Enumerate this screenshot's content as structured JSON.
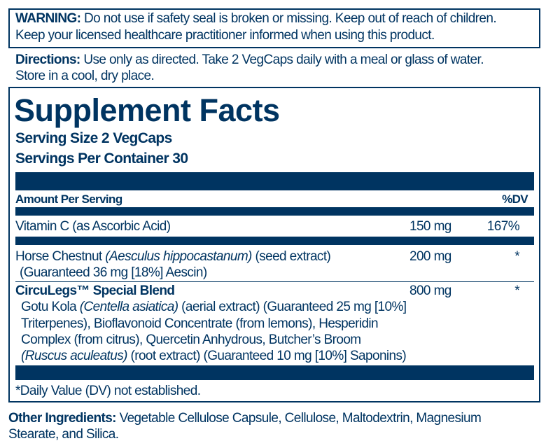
{
  "warning": {
    "label": "WARNING:",
    "line1": " Do not use if safety seal is broken or missing. Keep out of reach of children.",
    "line2": "Keep your licensed healthcare practitioner informed when using this product."
  },
  "directions": {
    "label": "Directions:",
    "line1": " Use only as directed. Take 2 VegCaps daily with a meal or glass of water.",
    "line2": "Store in a cool, dry place."
  },
  "facts": {
    "title": "Supplement Facts",
    "serving_size": "Serving Size 2 VegCaps",
    "servings_per_container": "Servings Per Container 30",
    "amount_header": "Amount Per Serving",
    "dv_header": "%DV",
    "rows": [
      {
        "name": "Vitamin C (as Ascorbic Acid)",
        "amount": "150 mg",
        "dv": "167%"
      },
      {
        "name": "Horse Chestnut ",
        "latin": "(Aesculus hippocastanum)",
        "rest": " (seed extract)",
        "line2": "(Guaranteed 36 mg [18%] Aescin)",
        "amount": "200 mg",
        "dv": "*"
      },
      {
        "name": "CircuLegs™ Special Blend",
        "amount": "800 mg",
        "dv": "*",
        "l1a": "Gotu Kola ",
        "l1b": "(Centella asiatica)",
        "l1c": " (aerial extract) (Guaranteed 25 mg [10%]",
        "l2": "Triterpenes), Bioflavonoid Concentrate (from lemons), Hesperidin",
        "l3": "Complex (from citrus), Quercetin Anhydrous, Butcher’s Broom",
        "l4a": "(Ruscus aculeatus)",
        "l4b": " (root extract) (Guaranteed 10 mg [10%] Saponins)"
      }
    ],
    "footnote": "*Daily Value (DV) not established."
  },
  "other": {
    "label": "Other Ingredients:",
    "line1": " Vegetable Cellulose Capsule, Cellulose, Maltodextrin, Magnesium",
    "line2": "Stearate, and Silica."
  },
  "colors": {
    "ink": "#003461"
  }
}
